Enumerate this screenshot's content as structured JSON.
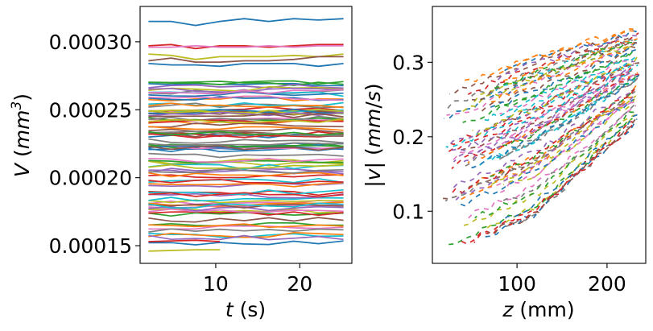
{
  "chart_data": [
    {
      "type": "line",
      "title": "",
      "xlabel": "t (s)",
      "ylabel": "V (mm^3)",
      "xlim": [
        1,
        26.2
      ],
      "ylim": [
        0.000137,
        0.000326
      ],
      "xticks": [
        10,
        20
      ],
      "xtick_labels": [
        "10",
        "20"
      ],
      "yticks": [
        0.00015,
        0.0002,
        0.00025,
        0.0003
      ],
      "ytick_labels": [
        "0.00015",
        "0.00020",
        "0.00025",
        "0.00030"
      ],
      "grid": false,
      "legend": "none",
      "t_values": [
        2,
        4.7,
        7.6,
        10.5,
        13.4,
        16.3,
        19.3,
        22.2,
        25.2
      ],
      "series": [
        {
          "color": "#1f77b4",
          "values": [
            0.000315,
            0.000315,
            0.000312,
            0.000315,
            0.000317,
            0.000315,
            0.000317,
            0.000316,
            0.000317
          ]
        },
        {
          "color": "#d62728",
          "values": [
            0.000297,
            0.000298,
            0.000295,
            0.000297,
            0.000297,
            0.000296,
            0.000297,
            0.000298,
            0.000298
          ]
        },
        {
          "color": "#e377c2",
          "values": [
            0.000296,
            0.000296,
            0.000297,
            0.000296,
            0.000296,
            0.000297,
            0.000296,
            0.000297,
            0.000297
          ]
        },
        {
          "color": "#bcbd22",
          "values": [
            0.000291,
            0.00029,
            0.000287,
            0.000289,
            0.000289,
            0.000289,
            0.00029,
            0.000289,
            0.000291
          ]
        },
        {
          "color": "#8c564b",
          "values": [
            0.000286,
            0.000288,
            0.000285,
            0.000285,
            0.000286,
            0.000286,
            0.000287,
            0.000289,
            0.000289
          ]
        },
        {
          "color": "#1f77b4",
          "values": [
            0.000284,
            0.000283,
            0.000283,
            0.000282,
            0.000284,
            0.000284,
            0.000284,
            0.000282,
            0.000284
          ]
        }
      ],
      "dense_band": {
        "description": "",
        "count": 90,
        "range": [
          0.000152,
          0.000272
        ],
        "palette": [
          "#1f77b4",
          "#ff7f0e",
          "#2ca02c",
          "#d62728",
          "#9467bd",
          "#8c564b",
          "#e377c2",
          "#7f7f7f",
          "#bcbd22",
          "#17becf"
        ]
      },
      "short_series": [
        {
          "color": "#bcbd22",
          "t": [
            2,
            7.6,
            10.5
          ],
          "values": [
            0.000146,
            0.000147,
            0.000147
          ]
        },
        {
          "color": "#d62728",
          "t": [
            2,
            7.6,
            10.5
          ],
          "values": [
            0.000153,
            0.000154,
            0.000153
          ]
        }
      ]
    },
    {
      "type": "line",
      "title": "",
      "xlabel": "z (mm)",
      "ylabel": "|v| (mm/s)",
      "xlim": [
        6,
        243
      ],
      "ylim": [
        0.03,
        0.375
      ],
      "xticks": [
        100,
        200
      ],
      "xtick_labels": [
        "100",
        "200"
      ],
      "yticks": [
        0.1,
        0.2,
        0.3
      ],
      "ytick_labels": [
        "0.1",
        "0.2",
        "0.3"
      ],
      "grid": false,
      "legend": "none",
      "style": "dashed",
      "trend": {
        "lower_edge": [
          [
            30,
            0.04
          ],
          [
            120,
            0.09
          ],
          [
            235,
            0.22
          ]
        ],
        "upper_edge": [
          [
            15,
            0.26
          ],
          [
            120,
            0.31
          ],
          [
            235,
            0.345
          ]
        ],
        "count": 70
      }
    }
  ]
}
